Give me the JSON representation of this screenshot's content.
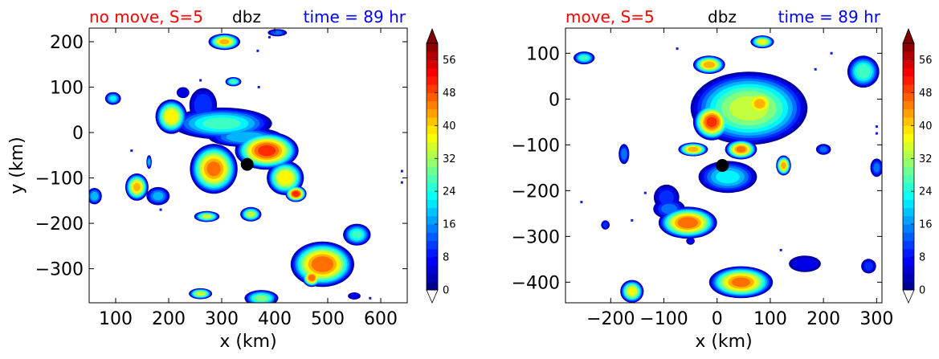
{
  "chart_data": [
    {
      "type": "heatmap",
      "title_left": "no move, S=5",
      "title_center": "dbz",
      "title_right": "time = 89 hr",
      "title_colors": {
        "left": "#ff0000",
        "center": "#000000",
        "right": "#0000ff"
      },
      "xlabel": "x (km)",
      "ylabel": "y (km)",
      "xlim": [
        50,
        650
      ],
      "ylim": [
        -375,
        230
      ],
      "xticks": [
        100,
        200,
        300,
        400,
        500,
        600
      ],
      "yticks": [
        200,
        100,
        0,
        -100,
        -200,
        -300
      ],
      "xtick_labels": [
        "100",
        "200",
        "300",
        "400",
        "500",
        "600"
      ],
      "ytick_labels": [
        "200",
        "100",
        "0",
        "−100",
        "−200",
        "−300"
      ],
      "center_marker": {
        "x": 348,
        "y": -70
      },
      "cells": [
        {
          "x": 305,
          "y": 200,
          "rx": 30,
          "ry": 18,
          "peak": 42
        },
        {
          "x": 405,
          "y": 220,
          "rx": 18,
          "ry": 8,
          "peak": 14
        },
        {
          "x": 95,
          "y": 75,
          "rx": 15,
          "ry": 14,
          "peak": 22
        },
        {
          "x": 205,
          "y": 35,
          "rx": 30,
          "ry": 38,
          "peak": 40
        },
        {
          "x": 227,
          "y": 88,
          "rx": 12,
          "ry": 12,
          "peak": 8
        },
        {
          "x": 322,
          "y": 112,
          "rx": 15,
          "ry": 10,
          "peak": 28
        },
        {
          "x": 265,
          "y": 60,
          "rx": 26,
          "ry": 38,
          "peak": 12
        },
        {
          "x": 300,
          "y": 20,
          "rx": 95,
          "ry": 35,
          "peak": 26
        },
        {
          "x": 385,
          "y": -40,
          "rx": 60,
          "ry": 42,
          "peak": 50
        },
        {
          "x": 285,
          "y": -80,
          "rx": 45,
          "ry": 55,
          "peak": 46
        },
        {
          "x": 345,
          "y": -10,
          "rx": 70,
          "ry": 22,
          "peak": 20
        },
        {
          "x": 420,
          "y": -100,
          "rx": 35,
          "ry": 38,
          "peak": 40
        },
        {
          "x": 440,
          "y": -135,
          "rx": 20,
          "ry": 18,
          "peak": 52
        },
        {
          "x": 355,
          "y": -180,
          "rx": 20,
          "ry": 16,
          "peak": 34
        },
        {
          "x": 140,
          "y": -120,
          "rx": 22,
          "ry": 30,
          "peak": 42
        },
        {
          "x": 180,
          "y": -140,
          "rx": 22,
          "ry": 20,
          "peak": 18
        },
        {
          "x": 60,
          "y": -140,
          "rx": 14,
          "ry": 18,
          "peak": 20
        },
        {
          "x": 272,
          "y": -185,
          "rx": 24,
          "ry": 12,
          "peak": 34
        },
        {
          "x": 490,
          "y": -290,
          "rx": 60,
          "ry": 50,
          "peak": 48
        },
        {
          "x": 470,
          "y": -320,
          "rx": 18,
          "ry": 20,
          "peak": 48
        },
        {
          "x": 555,
          "y": -225,
          "rx": 26,
          "ry": 24,
          "peak": 26
        },
        {
          "x": 260,
          "y": -355,
          "rx": 22,
          "ry": 12,
          "peak": 36
        },
        {
          "x": 375,
          "y": -365,
          "rx": 32,
          "ry": 18,
          "peak": 30
        },
        {
          "x": 550,
          "y": -360,
          "rx": 12,
          "ry": 8,
          "peak": 8
        },
        {
          "x": 163,
          "y": -65,
          "rx": 5,
          "ry": 15,
          "peak": 18
        }
      ],
      "specks": [
        [
          130,
          -40
        ],
        [
          390,
          210
        ],
        [
          368,
          180
        ],
        [
          370,
          100
        ],
        [
          260,
          115
        ],
        [
          640,
          -110
        ],
        [
          640,
          -85
        ],
        [
          185,
          -170
        ],
        [
          580,
          -365
        ]
      ]
    },
    {
      "type": "heatmap",
      "title_left": "move, S=5",
      "title_center": "dbz",
      "title_right": "time = 89 hr",
      "title_colors": {
        "left": "#ff0000",
        "center": "#000000",
        "right": "#0000ff"
      },
      "xlabel": "x (km)",
      "ylabel": "",
      "xlim": [
        -285,
        310
      ],
      "ylim": [
        -445,
        155
      ],
      "xticks": [
        -200,
        -100,
        0,
        100,
        200,
        300
      ],
      "yticks": [
        100,
        0,
        -100,
        -200,
        -300,
        -400
      ],
      "xtick_labels": [
        "−200",
        "−100",
        "0",
        "100",
        "200",
        "300"
      ],
      "ytick_labels": [
        "100",
        "0",
        "−100",
        "−200",
        "−300",
        "−400"
      ],
      "center_marker": {
        "x": 10,
        "y": -145
      },
      "cells": [
        {
          "x": -250,
          "y": 90,
          "rx": 20,
          "ry": 14,
          "peak": 26
        },
        {
          "x": -15,
          "y": 75,
          "rx": 30,
          "ry": 20,
          "peak": 44
        },
        {
          "x": 85,
          "y": 125,
          "rx": 22,
          "ry": 14,
          "peak": 38
        },
        {
          "x": 275,
          "y": 60,
          "rx": 30,
          "ry": 35,
          "peak": 28
        },
        {
          "x": 60,
          "y": -20,
          "rx": 110,
          "ry": 80,
          "peak": 34
        },
        {
          "x": -10,
          "y": -50,
          "rx": 35,
          "ry": 40,
          "peak": 50
        },
        {
          "x": 80,
          "y": -10,
          "rx": 35,
          "ry": 35,
          "peak": 42
        },
        {
          "x": 45,
          "y": -110,
          "rx": 30,
          "ry": 22,
          "peak": 46
        },
        {
          "x": -45,
          "y": -110,
          "rx": 28,
          "ry": 15,
          "peak": 44
        },
        {
          "x": 125,
          "y": -145,
          "rx": 14,
          "ry": 22,
          "peak": 44
        },
        {
          "x": 20,
          "y": -170,
          "rx": 55,
          "ry": 35,
          "peak": 22
        },
        {
          "x": -175,
          "y": -120,
          "rx": 10,
          "ry": 22,
          "peak": 16
        },
        {
          "x": -95,
          "y": -215,
          "rx": 24,
          "ry": 28,
          "peak": 10
        },
        {
          "x": -55,
          "y": -270,
          "rx": 55,
          "ry": 35,
          "peak": 48
        },
        {
          "x": -90,
          "y": -240,
          "rx": 30,
          "ry": 22,
          "peak": 14
        },
        {
          "x": 45,
          "y": -400,
          "rx": 60,
          "ry": 35,
          "peak": 46
        },
        {
          "x": -160,
          "y": -420,
          "rx": 22,
          "ry": 25,
          "peak": 38
        },
        {
          "x": 165,
          "y": -360,
          "rx": 30,
          "ry": 18,
          "peak": 8
        },
        {
          "x": 285,
          "y": -365,
          "rx": 14,
          "ry": 16,
          "peak": 10
        },
        {
          "x": 300,
          "y": -150,
          "rx": 12,
          "ry": 20,
          "peak": 14
        },
        {
          "x": 200,
          "y": -110,
          "rx": 14,
          "ry": 12,
          "peak": 14
        },
        {
          "x": -210,
          "y": -275,
          "rx": 8,
          "ry": 10,
          "peak": 10
        },
        {
          "x": -50,
          "y": -310,
          "rx": 8,
          "ry": 8,
          "peak": 6
        }
      ],
      "specks": [
        [
          185,
          65
        ],
        [
          215,
          100
        ],
        [
          -75,
          110
        ],
        [
          -160,
          -265
        ],
        [
          -135,
          -205
        ],
        [
          120,
          -330
        ],
        [
          300,
          -60
        ],
        [
          300,
          -75
        ],
        [
          -255,
          -225
        ]
      ]
    }
  ],
  "colorbar": {
    "ticks": [
      0,
      8,
      16,
      24,
      32,
      40,
      48,
      56
    ],
    "tick_labels": [
      "0",
      "8",
      "16",
      "24",
      "32",
      "40",
      "48",
      "56"
    ],
    "min": 0,
    "max": 60,
    "step": 2,
    "extend": "both"
  }
}
